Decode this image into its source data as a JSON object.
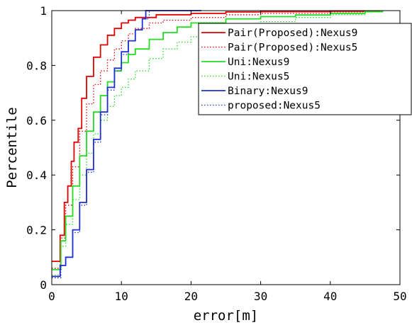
{
  "chart_data": {
    "type": "line",
    "title": "",
    "xlabel": "error[m]",
    "ylabel": "Percentile",
    "xlim": [
      0,
      50
    ],
    "ylim": [
      0,
      1
    ],
    "xticks": [
      0,
      10,
      20,
      30,
      40,
      50
    ],
    "yticks": [
      0,
      0.2,
      0.4,
      0.6,
      0.8,
      1
    ],
    "xtick_labels": [
      "0",
      "10",
      "20",
      "30",
      "40",
      "50"
    ],
    "ytick_labels": [
      "0",
      "0.2",
      "0.4",
      "0.6",
      "0.8",
      "1"
    ],
    "grid": false,
    "legend_position": "top-right",
    "series": [
      {
        "name": "Pair(Proposed):Nexus9",
        "color": "#e00000",
        "dash": "solid",
        "x": [
          0,
          1.2,
          1.2,
          1.8,
          2.3,
          2.8,
          3.2,
          3.8,
          4.3,
          5,
          6,
          7,
          8,
          9,
          10,
          11,
          12,
          15,
          20,
          25,
          30,
          40,
          47
        ],
        "y": [
          0.085,
          0.085,
          0.18,
          0.3,
          0.36,
          0.45,
          0.52,
          0.57,
          0.68,
          0.76,
          0.83,
          0.875,
          0.91,
          0.935,
          0.955,
          0.965,
          0.975,
          0.985,
          0.99,
          0.995,
          0.996,
          0.998,
          1
        ]
      },
      {
        "name": "Pair(Proposed):Nexus5",
        "color": "#e00000",
        "dash": "dotted",
        "x": [
          0,
          1.2,
          1.2,
          2,
          3,
          4,
          5,
          6,
          7,
          8,
          9,
          10,
          11,
          12,
          14,
          16,
          20,
          25,
          30,
          40,
          47
        ],
        "y": [
          0.06,
          0.06,
          0.17,
          0.29,
          0.43,
          0.56,
          0.66,
          0.73,
          0.78,
          0.82,
          0.86,
          0.89,
          0.915,
          0.935,
          0.955,
          0.965,
          0.975,
          0.985,
          0.99,
          0.995,
          1
        ]
      },
      {
        "name": "Uni:Nexus9",
        "color": "#22dd22",
        "dash": "solid",
        "x": [
          0,
          1.3,
          1.3,
          2,
          3,
          4,
          5,
          6,
          7,
          8,
          9,
          10,
          11,
          12,
          14,
          16,
          18,
          20,
          25,
          30,
          35,
          40,
          45,
          47.5
        ],
        "y": [
          0.055,
          0.055,
          0.16,
          0.25,
          0.36,
          0.47,
          0.56,
          0.63,
          0.69,
          0.74,
          0.78,
          0.81,
          0.84,
          0.86,
          0.895,
          0.92,
          0.94,
          0.955,
          0.97,
          0.978,
          0.984,
          0.99,
          0.996,
          1
        ]
      },
      {
        "name": "Uni:Nexus5",
        "color": "#22dd22",
        "dash": "dotted",
        "x": [
          0,
          1.3,
          1.3,
          2,
          3,
          4,
          5,
          6,
          7,
          8,
          9,
          10,
          11,
          12,
          14,
          16,
          18,
          20,
          25,
          30,
          35,
          40,
          45,
          47.5
        ],
        "y": [
          0.035,
          0.035,
          0.14,
          0.22,
          0.31,
          0.4,
          0.48,
          0.55,
          0.6,
          0.65,
          0.69,
          0.72,
          0.75,
          0.78,
          0.825,
          0.86,
          0.885,
          0.905,
          0.94,
          0.96,
          0.975,
          0.985,
          0.995,
          1
        ]
      },
      {
        "name": "Binary:Nexus9",
        "color": "#1f2fd0",
        "dash": "solid",
        "x": [
          0,
          1.2,
          1.2,
          2,
          3,
          4,
          5,
          6,
          7,
          8,
          9,
          10,
          11,
          12,
          13,
          13.5,
          15,
          20,
          21.5
        ],
        "y": [
          0.03,
          0.03,
          0.07,
          0.1,
          0.2,
          0.3,
          0.42,
          0.53,
          0.63,
          0.72,
          0.79,
          0.85,
          0.89,
          0.93,
          0.97,
          1,
          1,
          1,
          1
        ]
      },
      {
        "name": "proposed:Nexus5",
        "color": "#1f2fd0",
        "dash": "dotted",
        "x": [
          0,
          1.3,
          1.3,
          2,
          3,
          4,
          5,
          6,
          7,
          8,
          9,
          10,
          11,
          12,
          13,
          14
        ],
        "y": [
          0.025,
          0.025,
          0.07,
          0.1,
          0.19,
          0.29,
          0.41,
          0.52,
          0.62,
          0.71,
          0.78,
          0.84,
          0.89,
          0.93,
          0.97,
          1
        ]
      }
    ]
  }
}
